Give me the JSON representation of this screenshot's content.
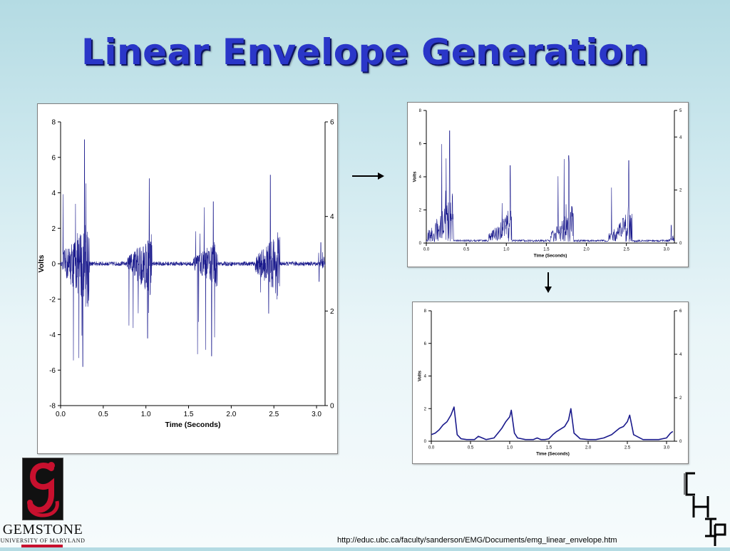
{
  "slide": {
    "title": "Linear Envelope Generation",
    "source_url": "http://educ.ubc.ca/faculty/sanderson/EMG/Documents/emg_linear_envelope.htm"
  },
  "logos": {
    "left_icon": "gemstone-g-logo",
    "left_word": "GEMSTONE",
    "left_sub": "UNIVERSITY OF MARYLAND",
    "right_icon": "chip-logo",
    "right_letters": [
      "C",
      "H",
      "I",
      "P"
    ]
  },
  "colors": {
    "title": "#2a36c8",
    "signal": "#1a1a8c",
    "logo_red": "#c8102e"
  },
  "chart_data": [
    {
      "id": "raw",
      "type": "line",
      "title": "",
      "xlabel": "Time (Seconds)",
      "ylabel": "Volts",
      "xlim": [
        0,
        3.1
      ],
      "ylim": [
        -8,
        8
      ],
      "y2lim": [
        0,
        6
      ],
      "xticks": [
        "0.0",
        "0.5",
        "1.0",
        "1.5",
        "2.0",
        "2.5",
        "3.0"
      ],
      "yticks": [
        "8",
        "6",
        "4",
        "2",
        "0",
        "-2",
        "-4",
        "-6",
        "-8"
      ],
      "y2ticks": [
        "6",
        "4",
        "2",
        "0"
      ],
      "bursts": [
        {
          "t0": 0.02,
          "t1": 0.34,
          "peak_t": 0.28,
          "peak": 7.0,
          "trough": -5.8
        },
        {
          "t0": 0.78,
          "t1": 1.07,
          "peak_t": 1.04,
          "peak": 4.8,
          "trough": -4.2
        },
        {
          "t0": 1.55,
          "t1": 1.84,
          "peak_t": 1.79,
          "peak": 3.5,
          "trough": -5.2
        },
        {
          "t0": 2.28,
          "t1": 2.57,
          "peak_t": 2.46,
          "peak": 5.0,
          "trough": -2.8
        },
        {
          "t0": 3.02,
          "t1": 3.1,
          "peak_t": 3.05,
          "peak": 1.2,
          "trough": -1.0
        }
      ]
    },
    {
      "id": "rectified",
      "type": "line",
      "title": "",
      "xlabel": "Time (Seconds)",
      "ylabel": "Volts",
      "xlim": [
        0,
        3.1
      ],
      "ylim": [
        0,
        8
      ],
      "y2lim": [
        0,
        5
      ],
      "xticks": [
        "0.0",
        "0.5",
        "1.0",
        "1.5",
        "2.0",
        "2.5",
        "3.0"
      ],
      "yticks": [
        "8",
        "6",
        "4",
        "2",
        "0"
      ],
      "y2ticks": [
        "5",
        "4",
        "2",
        "0"
      ],
      "bursts": [
        {
          "t0": 0.02,
          "t1": 0.34,
          "peak_t": 0.29,
          "peak": 6.7
        },
        {
          "t0": 0.78,
          "t1": 1.07,
          "peak_t": 1.05,
          "peak": 4.6
        },
        {
          "t0": 1.55,
          "t1": 1.84,
          "peak_t": 1.78,
          "peak": 5.2
        },
        {
          "t0": 2.28,
          "t1": 2.57,
          "peak_t": 2.53,
          "peak": 4.9
        },
        {
          "t0": 3.02,
          "t1": 3.1,
          "peak_t": 3.06,
          "peak": 1.0
        }
      ]
    },
    {
      "id": "envelope",
      "type": "line",
      "title": "",
      "xlabel": "Time (Seconds)",
      "ylabel": "Volts",
      "xlim": [
        0,
        3.1
      ],
      "ylim": [
        0,
        8
      ],
      "y2lim": [
        0,
        6
      ],
      "xticks": [
        "0.0",
        "0.5",
        "1.0",
        "1.5",
        "2.0",
        "2.5",
        "3.0"
      ],
      "yticks": [
        "8",
        "6",
        "4",
        "2",
        "0"
      ],
      "y2ticks": [
        "6",
        "4",
        "2",
        "0"
      ],
      "x": [
        0.0,
        0.05,
        0.1,
        0.15,
        0.2,
        0.25,
        0.29,
        0.33,
        0.38,
        0.45,
        0.55,
        0.6,
        0.65,
        0.7,
        0.8,
        0.85,
        0.9,
        0.95,
        1.0,
        1.02,
        1.06,
        1.1,
        1.2,
        1.3,
        1.35,
        1.4,
        1.45,
        1.5,
        1.55,
        1.6,
        1.7,
        1.75,
        1.78,
        1.82,
        1.9,
        2.0,
        2.1,
        2.2,
        2.3,
        2.35,
        2.4,
        2.45,
        2.5,
        2.53,
        2.58,
        2.7,
        2.8,
        2.9,
        3.0,
        3.05,
        3.08
      ],
      "y": [
        0.4,
        0.5,
        0.7,
        1.0,
        1.2,
        1.6,
        2.1,
        0.4,
        0.15,
        0.1,
        0.1,
        0.3,
        0.2,
        0.1,
        0.2,
        0.5,
        0.8,
        1.2,
        1.5,
        1.9,
        0.5,
        0.2,
        0.1,
        0.1,
        0.2,
        0.1,
        0.1,
        0.15,
        0.4,
        0.6,
        0.9,
        1.3,
        2.0,
        0.5,
        0.15,
        0.1,
        0.1,
        0.2,
        0.4,
        0.6,
        0.8,
        0.9,
        1.2,
        1.6,
        0.4,
        0.1,
        0.1,
        0.1,
        0.2,
        0.5,
        0.6
      ]
    }
  ]
}
